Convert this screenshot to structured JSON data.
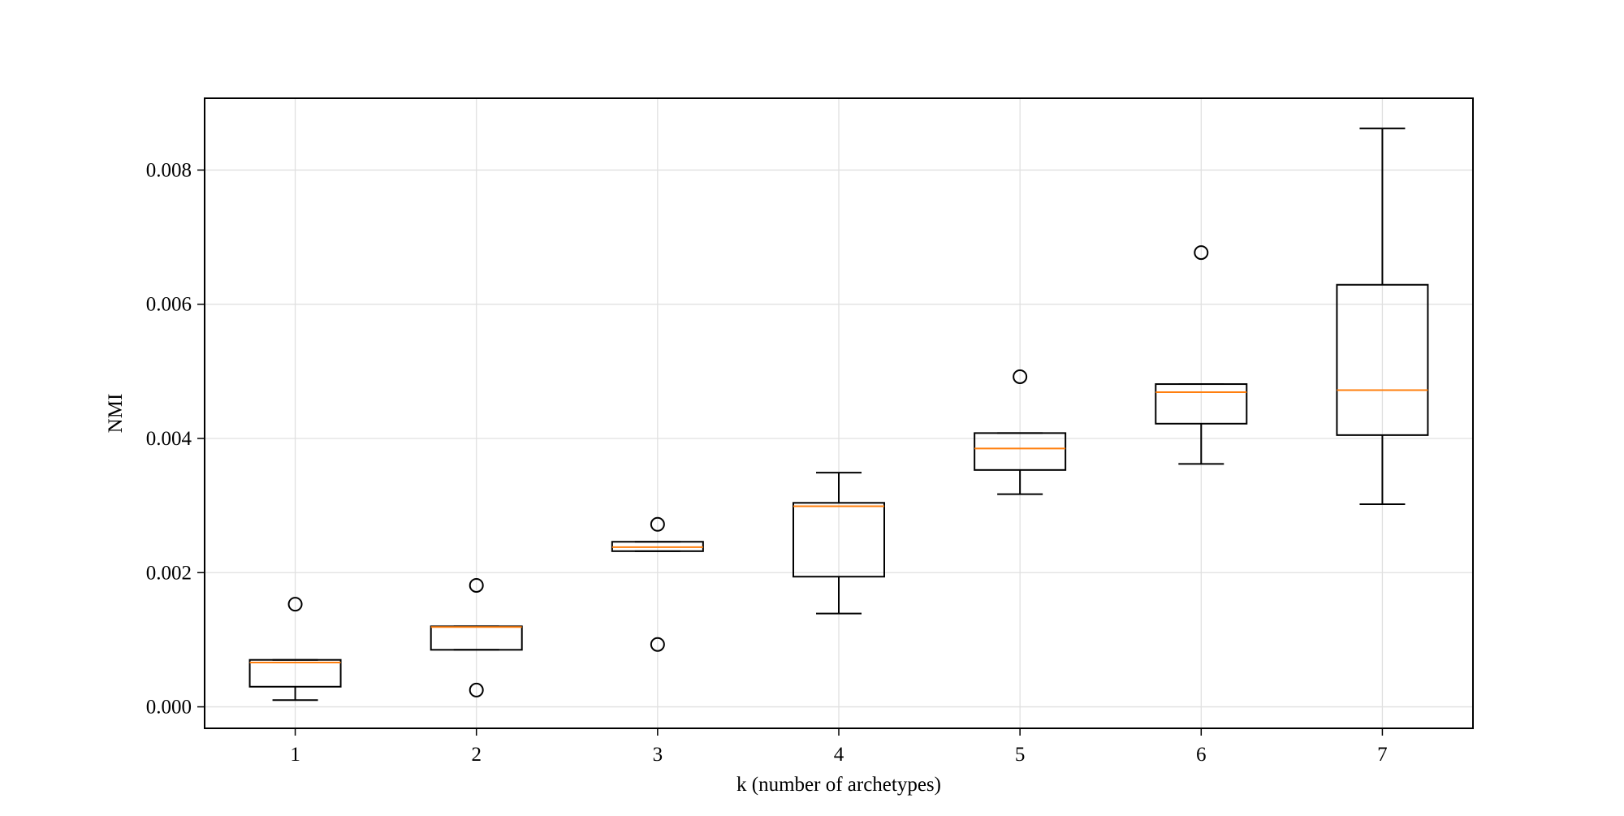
{
  "chart_data": {
    "type": "box",
    "title": "",
    "xlabel": "k (number of archetypes)",
    "ylabel": "NMI",
    "categories": [
      "1",
      "2",
      "3",
      "4",
      "5",
      "6",
      "7"
    ],
    "yticks": [
      "0.000",
      "0.002",
      "0.004",
      "0.006",
      "0.008"
    ],
    "ytick_values": [
      0.0,
      0.002,
      0.004,
      0.006,
      0.008
    ],
    "ylim": [
      -0.00032,
      0.00907
    ],
    "xlim": [
      0.5,
      7.5
    ],
    "grid": true,
    "colors": {
      "box": "#000000",
      "median": "#ff7f0e",
      "grid": "#e0e0e0",
      "axis": "#000000"
    },
    "boxes": [
      {
        "x": 1,
        "whisker_low": 0.0001,
        "q1": 0.0003,
        "median": 0.00066,
        "q3": 0.0007,
        "whisker_high": 0.0007,
        "outliers": [
          0.00153
        ]
      },
      {
        "x": 2,
        "whisker_low": 0.00085,
        "q1": 0.00085,
        "median": 0.00119,
        "q3": 0.0012,
        "whisker_high": 0.0012,
        "outliers": [
          0.00025,
          0.00181
        ]
      },
      {
        "x": 3,
        "whisker_low": 0.00232,
        "q1": 0.00232,
        "median": 0.00238,
        "q3": 0.00246,
        "whisker_high": 0.00246,
        "outliers": [
          0.00093,
          0.00272
        ]
      },
      {
        "x": 4,
        "whisker_low": 0.00139,
        "q1": 0.00194,
        "median": 0.00299,
        "q3": 0.00304,
        "whisker_high": 0.00349,
        "outliers": []
      },
      {
        "x": 5,
        "whisker_low": 0.00317,
        "q1": 0.00353,
        "median": 0.00385,
        "q3": 0.00408,
        "whisker_high": 0.00408,
        "outliers": [
          0.00492
        ]
      },
      {
        "x": 6,
        "whisker_low": 0.00362,
        "q1": 0.00422,
        "median": 0.00469,
        "q3": 0.00481,
        "whisker_high": 0.00481,
        "outliers": [
          0.00677
        ]
      },
      {
        "x": 7,
        "whisker_low": 0.00302,
        "q1": 0.00405,
        "median": 0.00472,
        "q3": 0.00629,
        "whisker_high": 0.00862,
        "outliers": []
      }
    ]
  }
}
